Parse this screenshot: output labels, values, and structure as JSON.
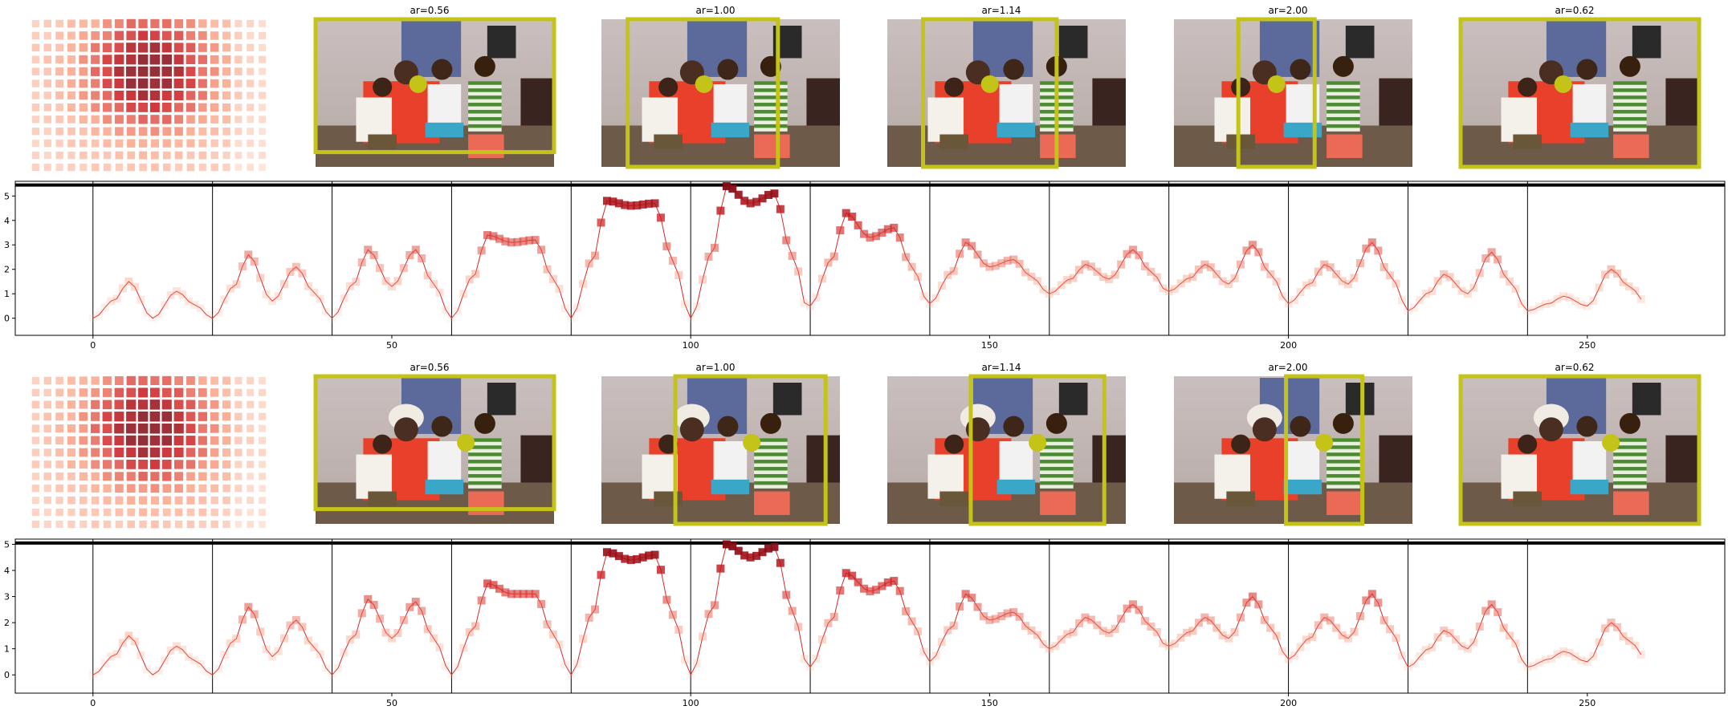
{
  "chart_data": [
    {
      "type": "image-panels",
      "panels": [
        {
          "title": ""
        },
        {
          "title": "ar=0.56"
        },
        {
          "title": "ar=1.00"
        },
        {
          "title": "ar=1.14"
        },
        {
          "title": "ar=2.00"
        },
        {
          "title": "ar=0.62"
        }
      ]
    },
    {
      "type": "line",
      "x_ticks": [
        0,
        50,
        100,
        150,
        200,
        250
      ],
      "y_ticks": [
        0,
        1,
        2,
        3,
        4,
        5
      ],
      "xlim": [
        -13,
        273
      ],
      "ylim": [
        -0.7,
        5.6
      ],
      "hline": 5.45,
      "vlines": [
        0,
        20,
        40,
        60,
        80,
        100,
        120,
        140,
        160,
        180,
        200,
        220,
        240
      ],
      "segments": [
        [
          0.0,
          1.5,
          0.0,
          1.1,
          0.0
        ],
        [
          0.0,
          2.6,
          0.7,
          2.1,
          0.0
        ],
        [
          0.0,
          2.8,
          1.3,
          2.8,
          0.0
        ],
        [
          0.0,
          3.4,
          3.1,
          3.2,
          0.0
        ],
        [
          0.0,
          4.8,
          4.6,
          4.7,
          0.0
        ],
        [
          0.0,
          5.4,
          4.7,
          5.1,
          0.0
        ],
        [
          0.5,
          4.3,
          3.3,
          3.7,
          0.5
        ],
        [
          0.6,
          3.1,
          2.1,
          2.4,
          1.0
        ],
        [
          1.0,
          2.2,
          1.6,
          2.8,
          1.0
        ],
        [
          1.1,
          2.2,
          1.4,
          3.0,
          0.6
        ],
        [
          0.6,
          2.2,
          1.4,
          3.1,
          0.4
        ],
        [
          0.3,
          1.8,
          1.0,
          2.7,
          0.3
        ],
        [
          0.3,
          0.9,
          0.5,
          2.0,
          0.6
        ]
      ],
      "color": "#d62728"
    },
    {
      "type": "image-panels",
      "panels": [
        {
          "title": ""
        },
        {
          "title": "ar=0.56"
        },
        {
          "title": "ar=1.00"
        },
        {
          "title": "ar=1.14"
        },
        {
          "title": "ar=2.00"
        },
        {
          "title": "ar=0.62"
        }
      ]
    },
    {
      "type": "line",
      "x_ticks": [
        0,
        50,
        100,
        150,
        200,
        250
      ],
      "y_ticks": [
        0,
        1,
        2,
        3,
        4,
        5
      ],
      "xlim": [
        -13,
        273
      ],
      "ylim": [
        -0.7,
        5.2
      ],
      "hline": 5.05,
      "vlines": [
        0,
        20,
        40,
        60,
        80,
        100,
        120,
        140,
        160,
        180,
        200,
        220,
        240
      ],
      "segments": [
        [
          0.0,
          1.5,
          0.0,
          1.1,
          0.0
        ],
        [
          0.0,
          2.6,
          0.7,
          2.1,
          0.0
        ],
        [
          0.0,
          2.9,
          1.4,
          2.8,
          0.0
        ],
        [
          0.0,
          3.5,
          3.1,
          3.1,
          0.0
        ],
        [
          0.0,
          4.7,
          4.4,
          4.6,
          0.0
        ],
        [
          0.0,
          5.0,
          4.5,
          4.9,
          0.0
        ],
        [
          0.3,
          3.9,
          3.2,
          3.6,
          0.5
        ],
        [
          0.5,
          3.1,
          2.1,
          2.4,
          1.0
        ],
        [
          1.0,
          2.2,
          1.6,
          2.7,
          1.0
        ],
        [
          1.1,
          2.2,
          1.4,
          3.0,
          0.6
        ],
        [
          0.6,
          2.2,
          1.4,
          3.1,
          0.4
        ],
        [
          0.3,
          1.7,
          1.0,
          2.7,
          0.3
        ],
        [
          0.3,
          0.9,
          0.5,
          2.0,
          0.6
        ]
      ],
      "color": "#d62728"
    }
  ]
}
